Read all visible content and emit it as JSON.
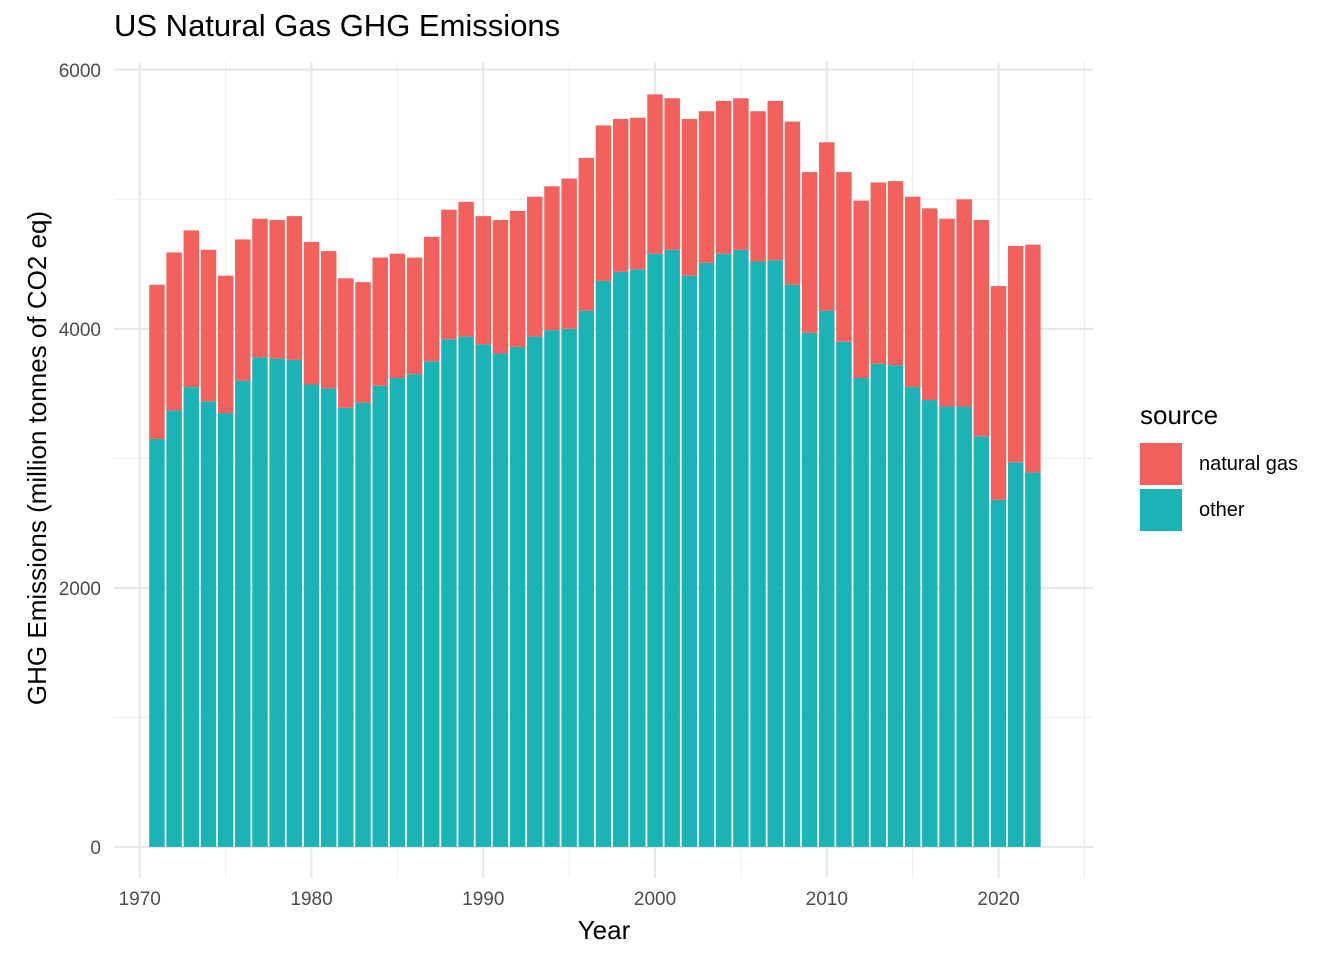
{
  "chart_data": {
    "type": "bar",
    "stacked": true,
    "title": "US Natural Gas GHG Emissions",
    "xlabel": "Year",
    "ylabel": "GHG Emissions (million tonnes of CO2 eq)",
    "xlim": [
      1968.5,
      2025.5
    ],
    "ylim": [
      -240,
      6060
    ],
    "x_ticks": [
      1970,
      1980,
      1990,
      2000,
      2010,
      2020
    ],
    "y_ticks": [
      0,
      2000,
      4000,
      6000
    ],
    "grid": true,
    "legend_title": "source",
    "legend_position": "right",
    "x": [
      1971,
      1972,
      1973,
      1974,
      1975,
      1976,
      1977,
      1978,
      1979,
      1980,
      1981,
      1982,
      1983,
      1984,
      1985,
      1986,
      1987,
      1988,
      1989,
      1990,
      1991,
      1992,
      1993,
      1994,
      1995,
      1996,
      1997,
      1998,
      1999,
      2000,
      2001,
      2002,
      2003,
      2004,
      2005,
      2006,
      2007,
      2008,
      2009,
      2010,
      2011,
      2012,
      2013,
      2014,
      2015,
      2016,
      2017,
      2018,
      2019,
      2020,
      2021,
      2022
    ],
    "series": [
      {
        "name": "other",
        "color": "#1CB3B6",
        "values": [
          3150,
          3370,
          3550,
          3440,
          3350,
          3600,
          3780,
          3770,
          3760,
          3570,
          3540,
          3390,
          3430,
          3560,
          3620,
          3650,
          3750,
          3920,
          3940,
          3880,
          3810,
          3860,
          3940,
          3990,
          4000,
          4140,
          4370,
          4440,
          4460,
          4580,
          4610,
          4410,
          4510,
          4580,
          4610,
          4520,
          4530,
          4340,
          3970,
          4140,
          3900,
          3620,
          3730,
          3720,
          3550,
          3450,
          3400,
          3400,
          3170,
          2680,
          2970,
          2890
        ]
      },
      {
        "name": "natural gas",
        "color": "#F2615C",
        "values": [
          1190,
          1220,
          1210,
          1170,
          1060,
          1090,
          1070,
          1070,
          1110,
          1100,
          1060,
          1000,
          930,
          990,
          960,
          900,
          960,
          1000,
          1040,
          990,
          1030,
          1050,
          1080,
          1110,
          1160,
          1180,
          1200,
          1180,
          1170,
          1230,
          1170,
          1210,
          1170,
          1180,
          1170,
          1160,
          1230,
          1260,
          1240,
          1300,
          1310,
          1370,
          1400,
          1420,
          1470,
          1480,
          1450,
          1600,
          1670,
          1650,
          1670,
          1760
        ]
      }
    ]
  }
}
